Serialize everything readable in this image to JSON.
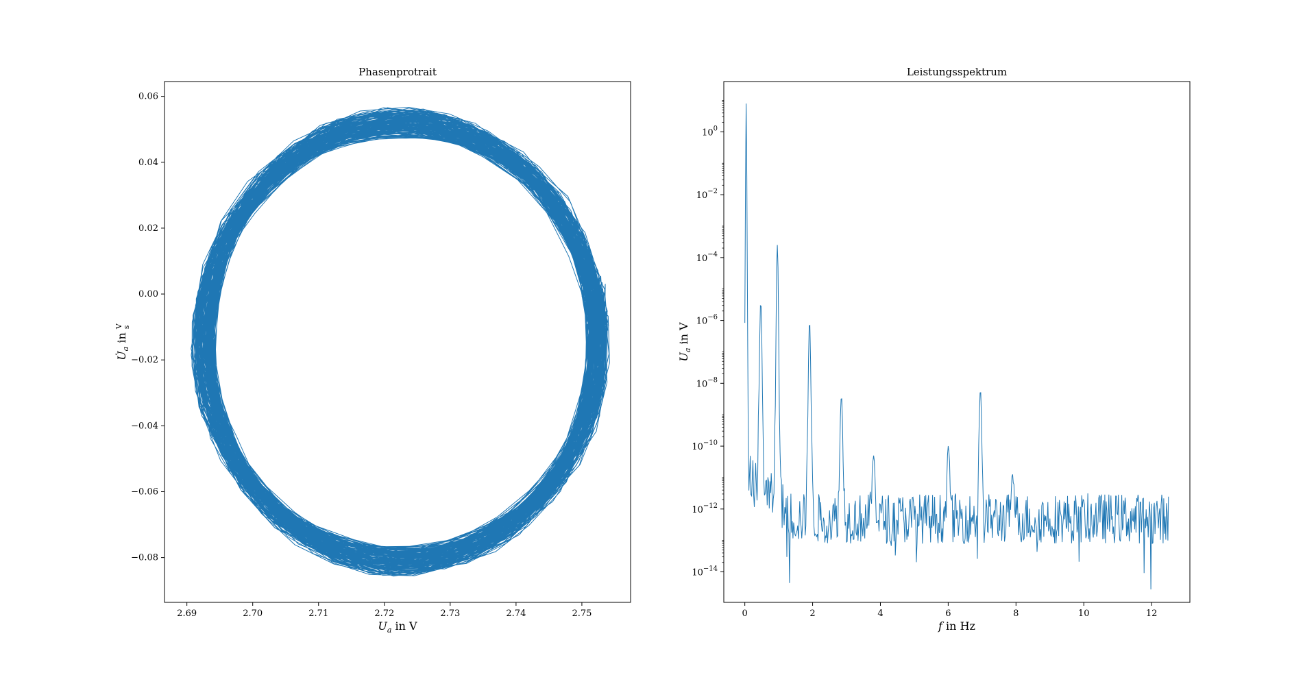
{
  "chart_data": [
    {
      "type": "line",
      "title": "Phasenprotrait",
      "xlabel": {
        "main": "U",
        "sub": "a",
        "tail": " in V"
      },
      "ylabel": {
        "dot": "U̇",
        "sub": "a",
        "mid": " in ",
        "num": "V",
        "den": "s"
      },
      "xlim": [
        2.6866,
        2.7574
      ],
      "ylim": [
        -0.0936,
        0.0645
      ],
      "xticks": [
        2.69,
        2.7,
        2.71,
        2.72,
        2.73,
        2.74,
        2.75
      ],
      "xtick_labels": [
        "2.69",
        "2.70",
        "2.71",
        "2.72",
        "2.73",
        "2.74",
        "2.75"
      ],
      "yticks": [
        0.06,
        0.04,
        0.02,
        0.0,
        -0.02,
        -0.04,
        -0.06,
        -0.08
      ],
      "ytick_labels": [
        "0.06",
        "0.04",
        "0.02",
        "0.00",
        "−0.02",
        "−0.04",
        "−0.06",
        "−0.08"
      ],
      "color": "#1f77b4",
      "orbit": {
        "center": [
          2.7225,
          -0.0145
        ],
        "x_semi_axis_outer": 0.0315,
        "x_semi_axis_inner": 0.0285,
        "y_semi_axis_outer": 0.0705,
        "y_semi_axis_inner": 0.063,
        "turns": 150
      }
    },
    {
      "type": "line",
      "title": "Leistungsspektrum",
      "xlabel": {
        "main": "f",
        "sub": "",
        "tail": " in Hz"
      },
      "ylabel": {
        "main": "U",
        "sub": "a",
        "tail": " in V"
      },
      "xlim": [
        -0.62,
        13.13
      ],
      "ylim_log10": [
        -14.97,
        1.6
      ],
      "yscale": "log",
      "xticks": [
        0,
        2,
        4,
        6,
        8,
        10,
        12
      ],
      "xtick_labels": [
        "0",
        "2",
        "4",
        "6",
        "8",
        "10",
        "12"
      ],
      "yticks_exp": [
        0,
        -2,
        -4,
        -6,
        -8,
        -10,
        -12,
        -14
      ],
      "ytick_base": "10",
      "ytick_exp_labels": [
        "0",
        "−2",
        "−4",
        "−6",
        "−8",
        "−10",
        "−12",
        "−14"
      ],
      "color": "#1f77b4",
      "spectrum": {
        "f_max": 12.5,
        "points": 626,
        "noise_floor_log10": -12.3,
        "peaks_log10": [
          {
            "f": 0.04,
            "log10": 0.9
          },
          {
            "f": 0.47,
            "log10": -5.4
          },
          {
            "f": 0.96,
            "log10": -3.6
          },
          {
            "f": 1.91,
            "log10": -6.0
          },
          {
            "f": 2.85,
            "log10": -8.4
          },
          {
            "f": 3.8,
            "log10": -10.3
          },
          {
            "f": 6.0,
            "log10": -10.0
          },
          {
            "f": 6.95,
            "log10": -8.2
          },
          {
            "f": 7.9,
            "log10": -10.9
          }
        ]
      }
    }
  ]
}
